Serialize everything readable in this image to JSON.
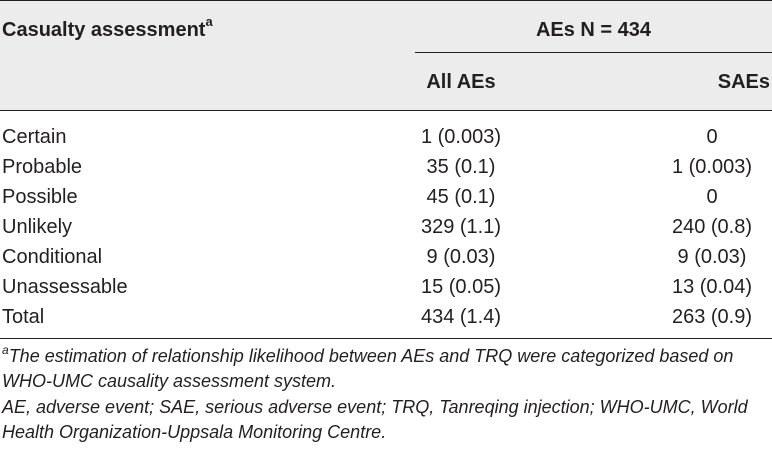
{
  "table": {
    "header": {
      "left_label": "Casualty assessment",
      "left_sup": "a",
      "span_label": "AEs N = 434",
      "col_all": "All AEs",
      "col_sae": "SAEs"
    },
    "rows": [
      {
        "label": "Certain",
        "all": "1 (0.003)",
        "sae": "0"
      },
      {
        "label": "Probable",
        "all": "35 (0.1)",
        "sae": "1 (0.003)"
      },
      {
        "label": "Possible",
        "all": "45 (0.1)",
        "sae": "0"
      },
      {
        "label": "Unlikely",
        "all": "329 (1.1)",
        "sae": "240 (0.8)"
      },
      {
        "label": "Conditional",
        "all": "9 (0.03)",
        "sae": "9 (0.03)"
      },
      {
        "label": "Unassessable",
        "all": "15 (0.05)",
        "sae": "13 (0.04)"
      },
      {
        "label": "Total",
        "all": "434 (1.4)",
        "sae": "263 (0.9)"
      }
    ]
  },
  "footnotes": {
    "note_a_sup": "a",
    "note_a_text": "The estimation of relationship likelihood between AEs and TRQ were categorized based on WHO-UMC causality assessment system.",
    "abbreviations": "AE, adverse event; SAE, serious adverse event; TRQ, Tanreqing injection; WHO-UMC, World Health Organization-Uppsala Monitoring Centre."
  }
}
